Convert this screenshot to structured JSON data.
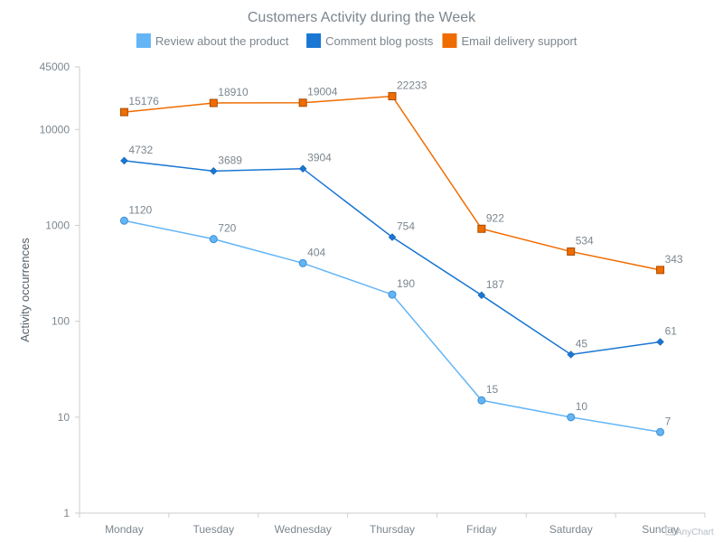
{
  "chart_data": {
    "type": "line",
    "title": "Customers Activity during the Week",
    "xlabel": "",
    "ylabel": "Activity occurrences",
    "y_scale": "log",
    "ylim": [
      1,
      45000
    ],
    "y_ticks": [
      1,
      10,
      100,
      1000,
      10000,
      45000
    ],
    "categories": [
      "Monday",
      "Tuesday",
      "Wednesday",
      "Thursday",
      "Friday",
      "Saturday",
      "Sunday"
    ],
    "legend_position": "top-center",
    "grid": false,
    "series": [
      {
        "name": "Review about the product",
        "color": "#64b5f6",
        "marker": "circle",
        "values": [
          1120,
          720,
          404,
          190,
          15,
          10,
          7
        ]
      },
      {
        "name": "Comment blog posts",
        "color": "#1976d2",
        "marker": "diamond",
        "values": [
          4732,
          3689,
          3904,
          754,
          187,
          45,
          61
        ]
      },
      {
        "name": "Email delivery support",
        "color": "#ef6c00",
        "marker": "square",
        "values": [
          15176,
          18910,
          19004,
          22233,
          922,
          534,
          343
        ]
      }
    ]
  },
  "credits": "AnyChart"
}
